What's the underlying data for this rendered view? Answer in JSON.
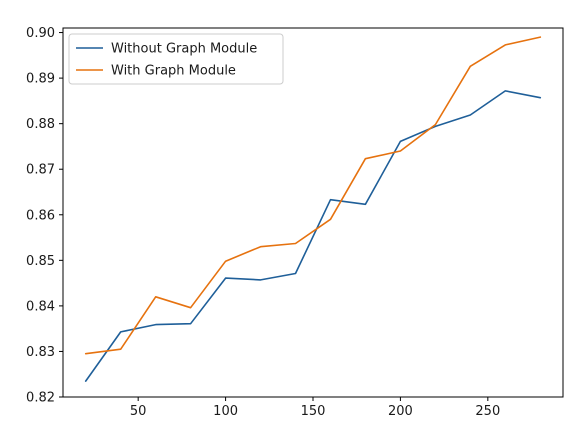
{
  "chart_data": {
    "type": "line",
    "title": "",
    "xlabel": "",
    "ylabel": "",
    "xlim": [
      7,
      293
    ],
    "ylim": [
      0.82,
      0.901
    ],
    "x_ticks": [
      50,
      100,
      150,
      200,
      250
    ],
    "x_tick_labels": [
      "50",
      "100",
      "150",
      "200",
      "250"
    ],
    "y_ticks": [
      0.82,
      0.83,
      0.84,
      0.85,
      0.86,
      0.87,
      0.88,
      0.89,
      0.9
    ],
    "y_tick_labels": [
      "0.82",
      "0.83",
      "0.84",
      "0.85",
      "0.86",
      "0.87",
      "0.88",
      "0.89",
      "0.90"
    ],
    "grid": false,
    "legend_position": "top-left",
    "x": [
      20,
      40,
      60,
      80,
      100,
      120,
      140,
      160,
      180,
      200,
      220,
      240,
      260,
      280
    ],
    "series": [
      {
        "name": "Without Graph Module",
        "color": "#1f5f99",
        "values": [
          0.8235,
          0.8343,
          0.8359,
          0.8361,
          0.8461,
          0.8457,
          0.8471,
          0.8633,
          0.8623,
          0.8761,
          0.8794,
          0.8819,
          0.8872,
          0.8857
        ]
      },
      {
        "name": "With Graph Module",
        "color": "#e6720f",
        "values": [
          0.8295,
          0.8305,
          0.842,
          0.8396,
          0.8498,
          0.853,
          0.8537,
          0.859,
          0.8723,
          0.874,
          0.8798,
          0.8926,
          0.8973,
          0.899
        ]
      }
    ]
  }
}
